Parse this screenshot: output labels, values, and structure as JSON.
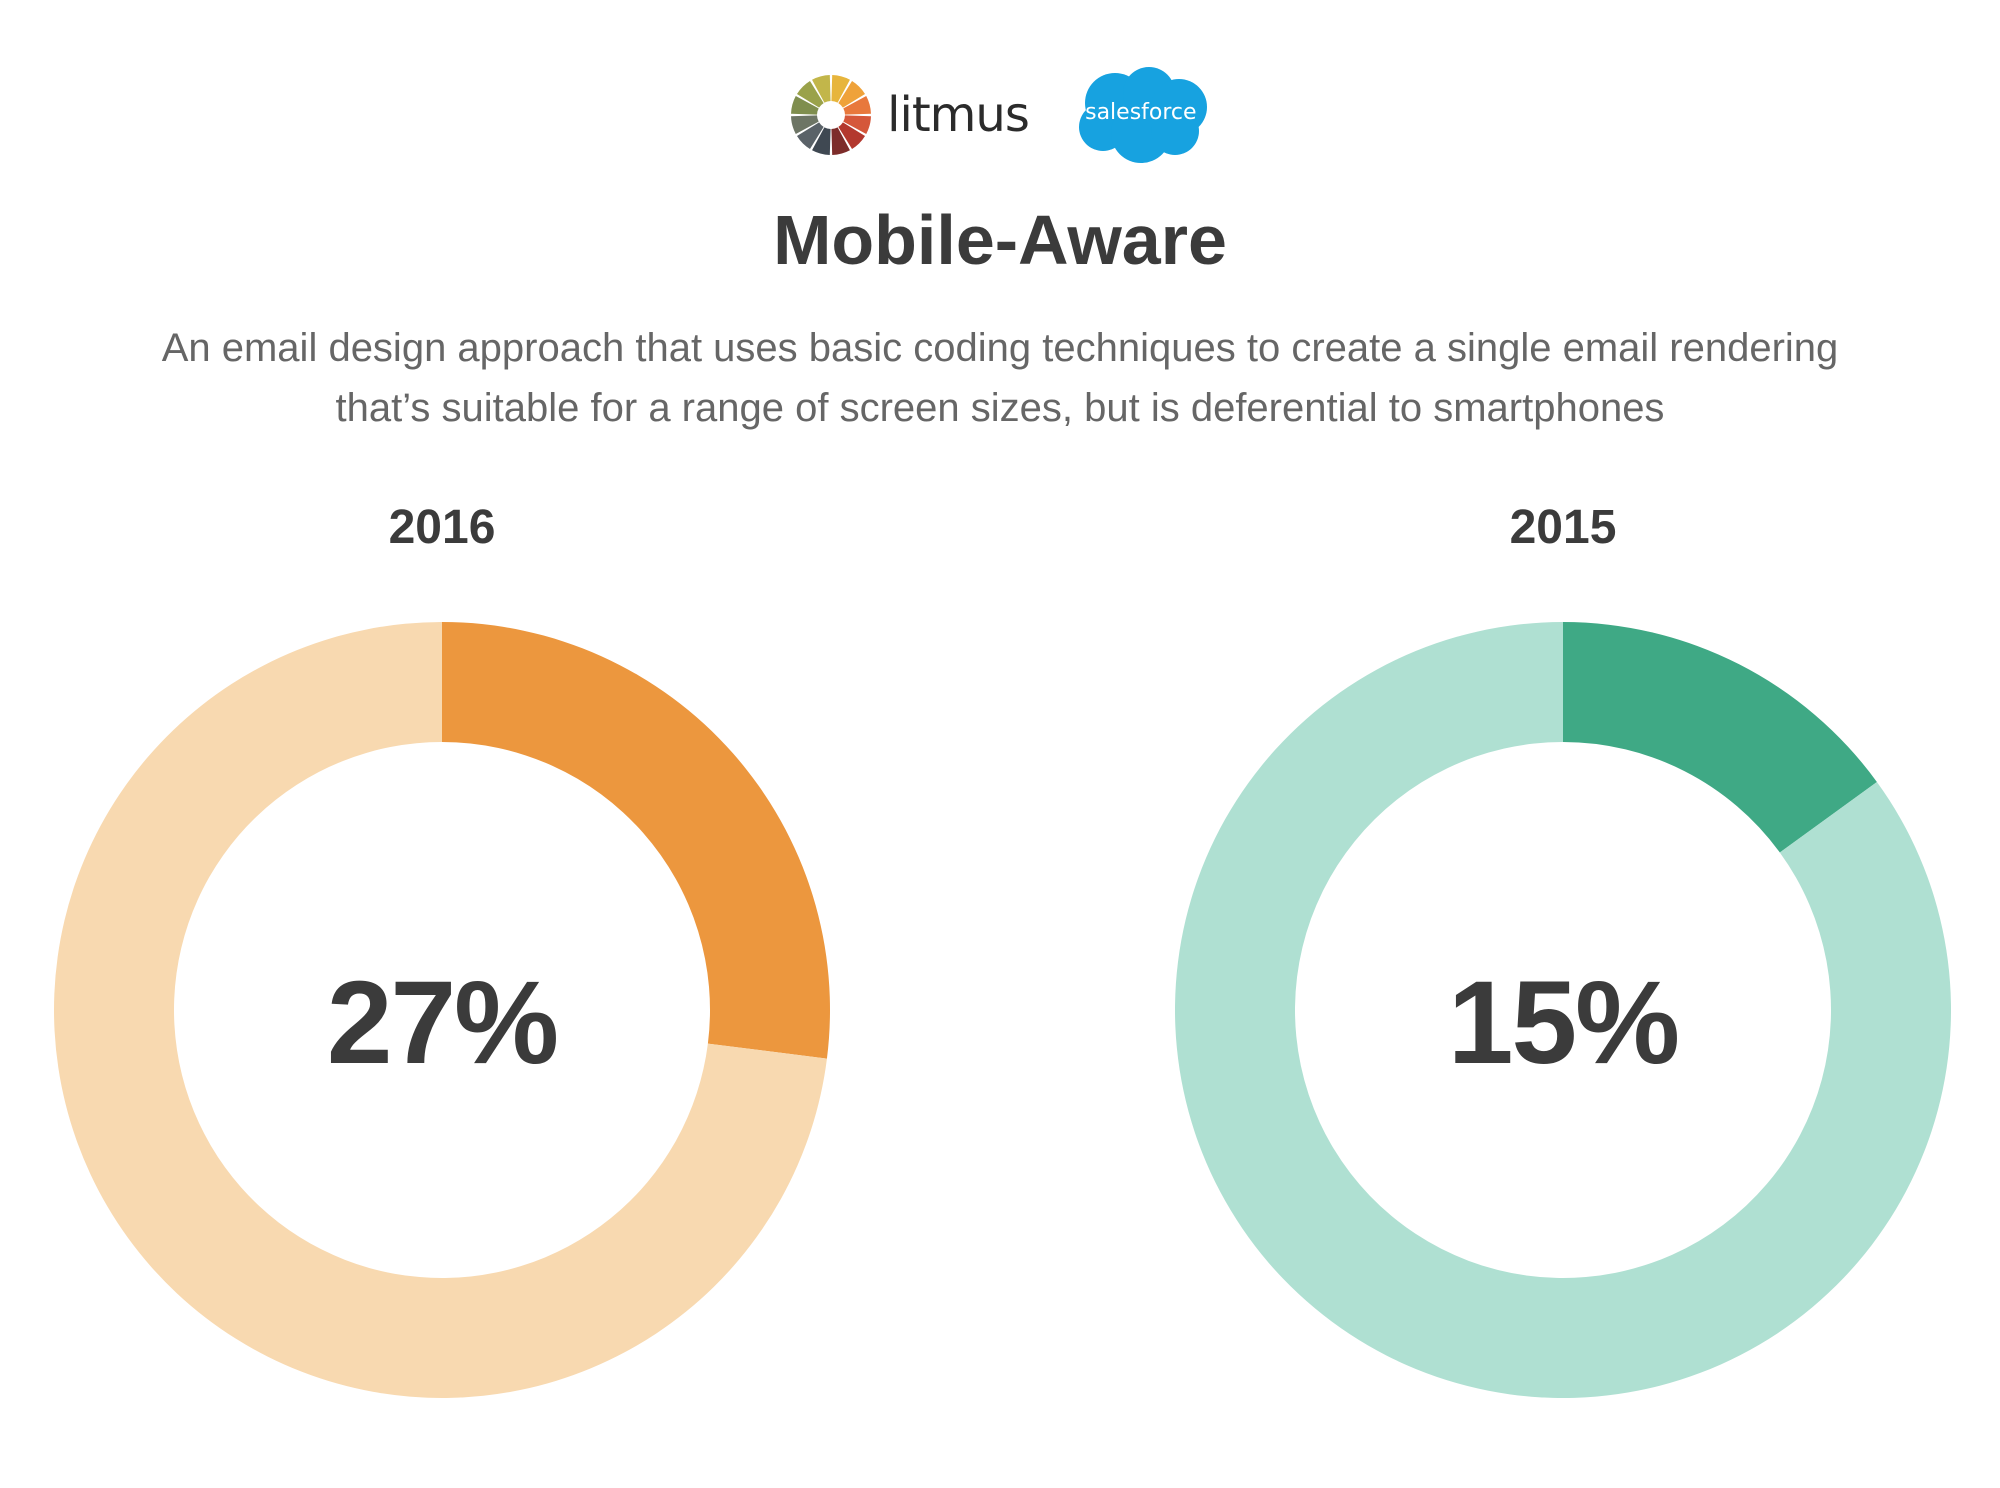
{
  "header": {
    "litmus_logo_text": "litmus",
    "salesforce_logo_text": "salesforce",
    "title": "Mobile-Aware",
    "subtitle_line1": "An email design approach that uses basic coding techniques to create a single email rendering",
    "subtitle_line2": "that’s suitable for a range of screen sizes, but is deferential to smartphones"
  },
  "chart_data": [
    {
      "type": "pie",
      "title": "2016",
      "center_label": "27%",
      "values": [
        27,
        73
      ],
      "colors": [
        "#ec973e",
        "#f8d9b0"
      ]
    },
    {
      "type": "pie",
      "title": "2015",
      "center_label": "15%",
      "values": [
        15,
        85
      ],
      "colors": [
        "#3fa985",
        "#afe0d2"
      ]
    }
  ]
}
